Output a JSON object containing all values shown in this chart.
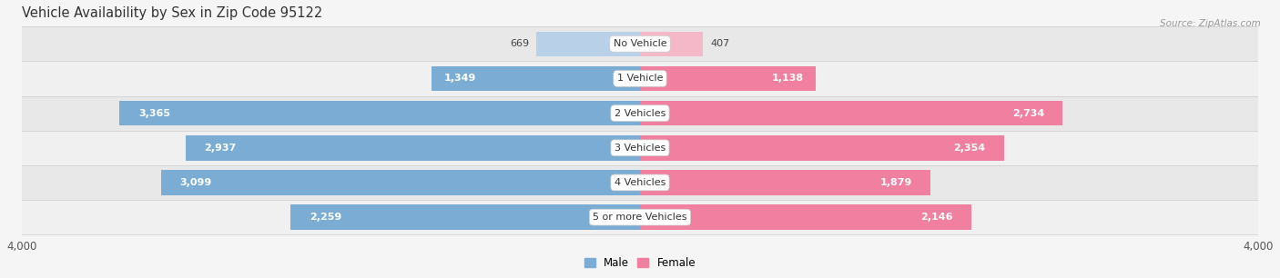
{
  "title": "Vehicle Availability by Sex in Zip Code 95122",
  "source": "Source: ZipAtlas.com",
  "categories": [
    "No Vehicle",
    "1 Vehicle",
    "2 Vehicles",
    "3 Vehicles",
    "4 Vehicles",
    "5 or more Vehicles"
  ],
  "male_values": [
    669,
    1349,
    3365,
    2937,
    3099,
    2259
  ],
  "female_values": [
    407,
    1138,
    2734,
    2354,
    1879,
    2146
  ],
  "male_color": "#7badd4",
  "female_color": "#f07fa0",
  "male_color_light": "#b8d0e8",
  "female_color_light": "#f5b8c8",
  "axis_max": 4000,
  "background_color": "#f5f5f5",
  "row_bg_color": "#ffffff",
  "row_alt_color": "#f0f0f0",
  "title_fontsize": 10.5,
  "label_fontsize": 8.0,
  "value_fontsize": 8.0,
  "tick_fontsize": 8.5,
  "source_fontsize": 7.5
}
